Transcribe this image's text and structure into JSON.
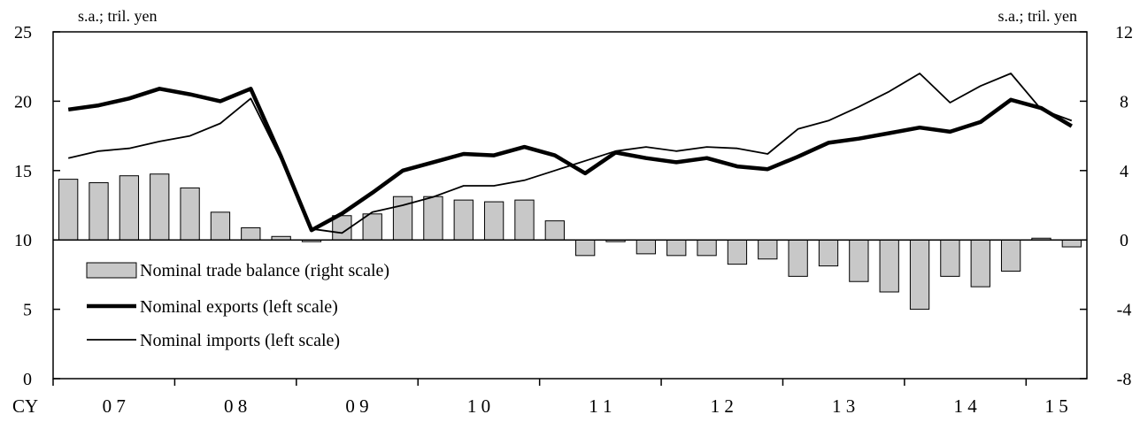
{
  "chart_data": {
    "type": "bar+line",
    "title": "",
    "left_unit": "s.a.; tril. yen",
    "right_unit": "s.a.; tril. yen",
    "left_axis": {
      "min": 0,
      "max": 25,
      "ticks": [
        0,
        5,
        10,
        15,
        20,
        25
      ]
    },
    "right_axis": {
      "min": -8,
      "max": 12,
      "ticks": [
        -8,
        -4,
        0,
        4,
        8,
        12
      ]
    },
    "x_prefix": "CY",
    "year_labels": [
      "0 7",
      "0 8",
      "0 9",
      "1 0",
      "1 1",
      "1 2",
      "1 3",
      "1 4",
      "1 5"
    ],
    "quarter_count": 34,
    "series": [
      {
        "name": "Nominal trade balance (right scale)",
        "type": "bar",
        "axis": "right",
        "color": "#c8c8c8",
        "values": [
          3.5,
          3.3,
          3.7,
          3.8,
          3.0,
          1.6,
          0.7,
          0.2,
          -0.1,
          1.4,
          1.5,
          2.5,
          2.5,
          2.3,
          2.2,
          2.3,
          1.1,
          -0.9,
          -0.1,
          -0.8,
          -0.9,
          -0.9,
          -1.4,
          -1.1,
          -2.1,
          -1.5,
          -2.4,
          -3.0,
          -4.0,
          -2.1,
          -2.7,
          -1.8,
          0.1,
          -0.4
        ]
      },
      {
        "name": "Nominal exports (left scale)",
        "type": "line",
        "axis": "left",
        "color": "#000000",
        "values": [
          19.4,
          19.7,
          20.2,
          20.9,
          20.5,
          20.0,
          20.9,
          16.0,
          10.7,
          11.9,
          13.4,
          15.0,
          15.6,
          16.2,
          16.1,
          16.7,
          16.1,
          14.8,
          16.3,
          15.9,
          15.6,
          15.9,
          15.3,
          15.1,
          16.0,
          17.0,
          17.3,
          17.7,
          18.1,
          17.8,
          18.5,
          20.1,
          19.5,
          18.2
        ]
      },
      {
        "name": "Nominal imports (left scale)",
        "type": "line",
        "axis": "left",
        "color": "#000000",
        "values": [
          15.9,
          16.4,
          16.6,
          17.1,
          17.5,
          18.4,
          20.2,
          15.8,
          10.8,
          10.5,
          12.0,
          12.5,
          13.1,
          13.9,
          13.9,
          14.3,
          15.0,
          15.7,
          16.4,
          16.7,
          16.4,
          16.7,
          16.6,
          16.2,
          18.0,
          18.6,
          19.6,
          20.7,
          22.0,
          19.9,
          21.1,
          22.0,
          19.4,
          18.6
        ]
      }
    ]
  }
}
